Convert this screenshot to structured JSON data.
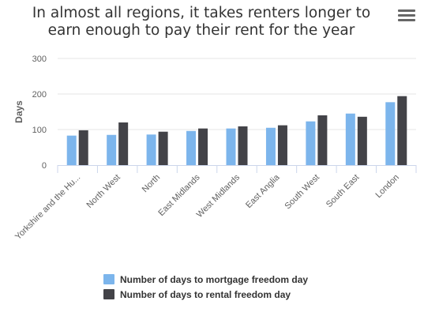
{
  "chart_data": {
    "type": "bar",
    "title": "In almost all regions, it takes renters longer to earn enough to pay their rent for the year",
    "ylabel": "Days",
    "xlabel": "",
    "ylim": [
      0,
      300
    ],
    "yticks": [
      0,
      100,
      200,
      300
    ],
    "grid": true,
    "legend_position": "bottom",
    "categories": [
      "Yorkshire and the Hu...",
      "North West",
      "North",
      "East Midlands",
      "West Midlands",
      "East Anglia",
      "South West",
      "South East",
      "London"
    ],
    "series": [
      {
        "name": "Number of days to mortgage freedom day",
        "color": "#7cb5ec",
        "values": [
          83,
          85,
          86,
          96,
          103,
          105,
          123,
          145,
          177
        ]
      },
      {
        "name": "Number of days to rental freedom day",
        "color": "#434348",
        "values": [
          98,
          120,
          94,
          103,
          109,
          112,
          140,
          136,
          194
        ]
      }
    ]
  },
  "menu_icon": "hamburger-menu-icon"
}
